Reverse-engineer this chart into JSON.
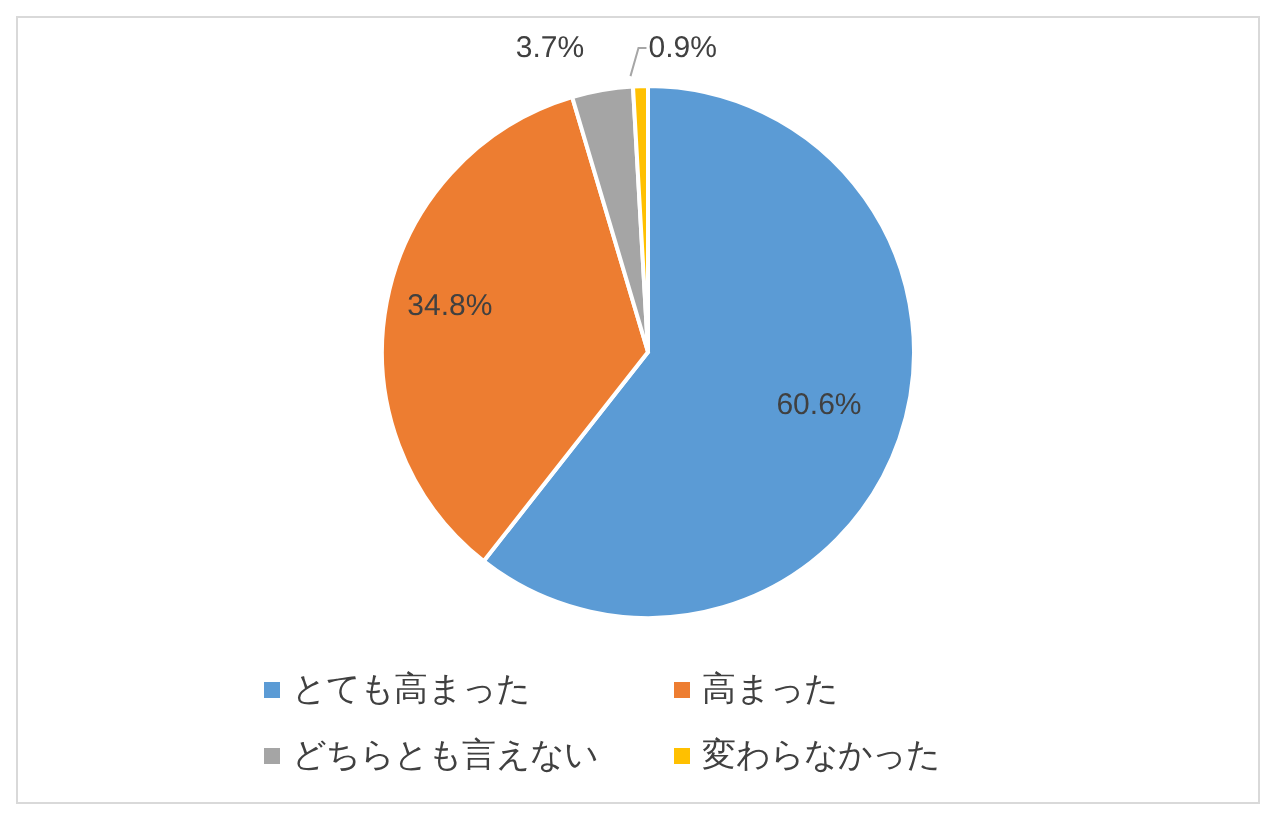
{
  "chart_data": {
    "type": "pie",
    "categories": [
      "とても高まった",
      "高まった",
      "どちらとも言えない",
      "変わらなかった"
    ],
    "values": [
      60.6,
      34.8,
      3.7,
      0.9
    ],
    "colors": [
      "#5b9bd5",
      "#ed7d31",
      "#a5a5a5",
      "#ffc000"
    ],
    "value_labels": [
      "60.6%",
      "34.8%",
      "3.7%",
      "0.9%"
    ],
    "legend": "bottom"
  }
}
